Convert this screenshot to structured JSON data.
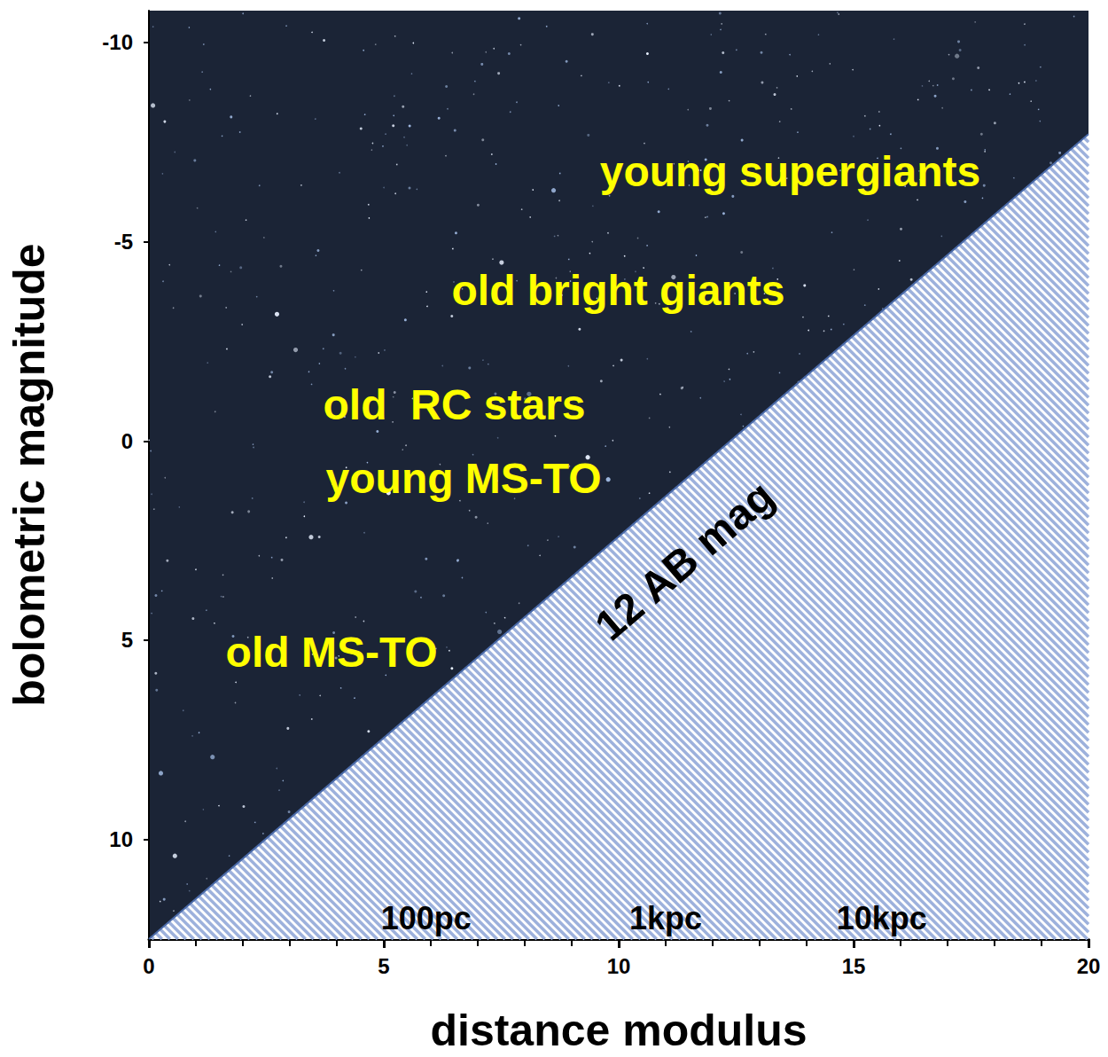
{
  "chart_data": {
    "type": "line",
    "xlabel": "distance modulus",
    "ylabel": "bolometric magnitude",
    "xlim": [
      0,
      20
    ],
    "xticks": [
      0,
      5,
      10,
      15,
      20
    ],
    "ylim": [
      -10.8,
      12.5
    ],
    "yticks": [
      -10,
      -5,
      0,
      5,
      10
    ],
    "grid": false,
    "series": [
      {
        "color": "#4a6aa8",
        "x": [
          0,
          20
        ],
        "values": [
          12.5,
          -7.7
        ]
      }
    ],
    "annotations": [
      {
        "text": "young supergiants",
        "x": 13.65,
        "y": -6.77
      },
      {
        "text": "old bright giants",
        "x": 9.99,
        "y": -3.78
      },
      {
        "text": "old  RC stars",
        "x": 6.5,
        "y": -0.91
      },
      {
        "text": "young MS-TO",
        "x": 6.7,
        "y": 0.93
      },
      {
        "text": "old MS-TO",
        "x": 3.89,
        "y": 5.29
      }
    ],
    "line_label": {
      "text": "12 AB mag",
      "x": 11.4,
      "y": 3.0
    },
    "distance_labels": [
      {
        "text": "100pc",
        "x": 5.9,
        "y": 11.97
      },
      {
        "text": "1kpc",
        "x": 11.0,
        "y": 11.97
      },
      {
        "text": "10kpc",
        "x": 15.6,
        "y": 11.97
      }
    ]
  }
}
